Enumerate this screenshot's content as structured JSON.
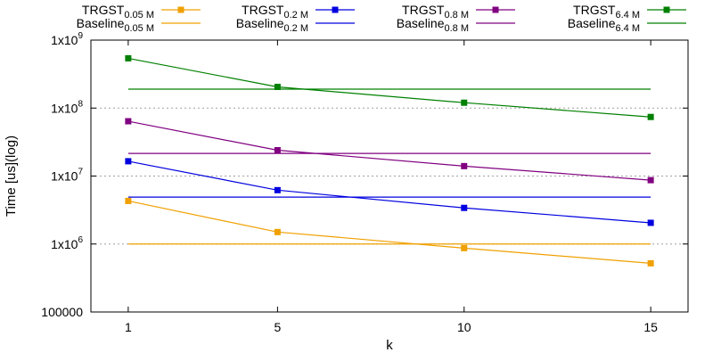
{
  "chart_data": {
    "type": "line",
    "title": "",
    "xlabel": "k",
    "ylabel": "Time [us](log)",
    "x": [
      1,
      5,
      10,
      15
    ],
    "xlim": [
      0,
      16
    ],
    "ylim": [
      100000,
      1000000000
    ],
    "yscale": "log",
    "x_tick_labels": [
      "1",
      "5",
      "10",
      "15"
    ],
    "y_ticks": [
      {
        "value": 100000,
        "base": "100000",
        "exp": ""
      },
      {
        "value": 1000000,
        "base": "1x10",
        "exp": "6"
      },
      {
        "value": 10000000,
        "base": "1x10",
        "exp": "7"
      },
      {
        "value": 100000000,
        "base": "1x10",
        "exp": "8"
      },
      {
        "value": 1000000000,
        "base": "1x10",
        "exp": "9"
      }
    ],
    "grid": "horizontal dotted",
    "legend_position": "top",
    "series": [
      {
        "name_base": "TRGST",
        "name_sub": "0.05 M",
        "color": "#f0a000",
        "marker": "square",
        "dashed": false,
        "values": [
          4300000,
          1500000,
          870000,
          520000
        ]
      },
      {
        "name_base": "Baseline",
        "name_sub": "0.05 M",
        "color": "#f0a000",
        "marker": "none",
        "dashed": false,
        "values": [
          1000000,
          1000000,
          1000000,
          1000000
        ]
      },
      {
        "name_base": "TRGST",
        "name_sub": "0.2 M",
        "color": "#0000e0",
        "marker": "square",
        "dashed": false,
        "values": [
          16500000,
          6200000,
          3400000,
          2050000
        ]
      },
      {
        "name_base": "Baseline",
        "name_sub": "0.2 M",
        "color": "#0000e0",
        "marker": "none",
        "dashed": false,
        "values": [
          4900000,
          4900000,
          4900000,
          4900000
        ]
      },
      {
        "name_base": "TRGST",
        "name_sub": "0.8 M",
        "color": "#800080",
        "marker": "square",
        "dashed": false,
        "values": [
          64000000,
          24000000,
          14000000,
          8700000
        ]
      },
      {
        "name_base": "Baseline",
        "name_sub": "0.8 M",
        "color": "#800080",
        "marker": "none",
        "dashed": false,
        "values": [
          21500000,
          21500000,
          21500000,
          21500000
        ]
      },
      {
        "name_base": "TRGST",
        "name_sub": "6.4 M",
        "color": "#008000",
        "marker": "square",
        "dashed": false,
        "values": [
          540000000,
          205000000,
          120000000,
          74000000
        ]
      },
      {
        "name_base": "Baseline",
        "name_sub": "6.4 M",
        "color": "#008000",
        "marker": "none",
        "dashed": false,
        "values": [
          190000000,
          190000000,
          190000000,
          190000000
        ]
      }
    ]
  }
}
